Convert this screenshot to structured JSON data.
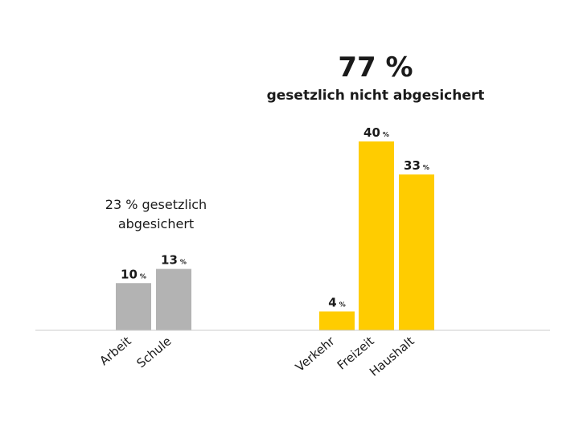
{
  "chart_data": {
    "type": "bar",
    "title": "77 %",
    "subtitle": "gesetzlich nicht abgesichert",
    "group_note": [
      "23 % gesetzlich",
      "abgesichert"
    ],
    "unit": "%",
    "categories": [
      "Arbeit",
      "Schule",
      "Verkehr",
      "Freizeit",
      "Haushalt"
    ],
    "values": [
      10,
      13,
      4,
      40,
      33
    ],
    "groups": [
      "gesetzlich abgesichert",
      "gesetzlich abgesichert",
      "gesetzlich nicht abgesichert",
      "gesetzlich nicht abgesichert",
      "gesetzlich nicht abgesichert"
    ],
    "colors": {
      "gesetzlich abgesichert": "#b3b3b3",
      "gesetzlich nicht abgesichert": "#ffcc00",
      "axis": "#cccccc"
    },
    "xlabel": "",
    "ylabel": "",
    "ylim": [
      0,
      40
    ],
    "grid": false
  }
}
